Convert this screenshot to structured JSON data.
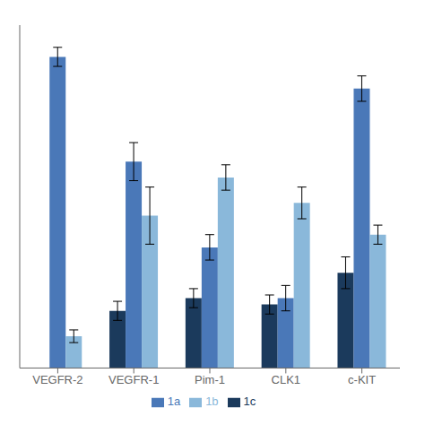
{
  "chart_data": {
    "type": "bar",
    "categories": [
      "VEGFR-2",
      "VEGFR-1",
      "Pim-1",
      "CLK1",
      "c-KIT"
    ],
    "series": [
      {
        "name": "1c",
        "color": "#1b3a5c",
        "values": [
          0,
          18,
          22,
          20,
          30
        ],
        "errors": [
          0.5,
          3,
          3,
          3,
          5
        ]
      },
      {
        "name": "1a",
        "color": "#4a78b8",
        "values": [
          98,
          65,
          38,
          22,
          88
        ],
        "errors": [
          3,
          6,
          4,
          4,
          4
        ]
      },
      {
        "name": "1b",
        "color": "#8ab8da",
        "values": [
          10,
          48,
          60,
          52,
          42
        ],
        "errors": [
          2,
          9,
          4,
          5,
          3
        ]
      }
    ],
    "ylim": [
      0,
      108
    ],
    "grid": false,
    "legend": "bottom",
    "tick_labels": "x"
  }
}
